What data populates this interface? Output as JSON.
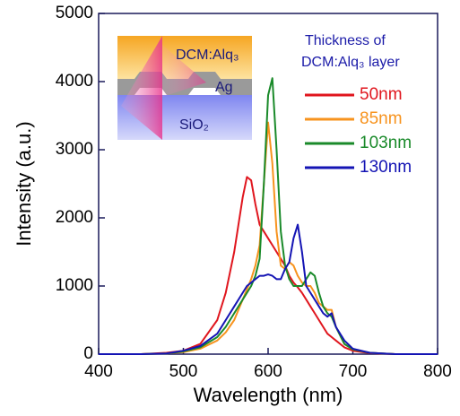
{
  "chart_data": {
    "type": "line",
    "x_label": "Wavelength (nm)",
    "y_label": "Intensity (a.u.)",
    "xlim": [
      400,
      800
    ],
    "xticks": [
      400,
      500,
      600,
      700,
      800
    ],
    "ylim": [
      0,
      5000
    ],
    "yticks": [
      0,
      1000,
      2000,
      3000,
      4000,
      5000
    ],
    "grid": false,
    "legend_position": "upper right",
    "legend_title": [
      "Thickness of",
      "DCM:Alq₃ layer"
    ],
    "inset_labels": [
      "DCM:Alq₃",
      "Ag",
      "SiO₂"
    ],
    "x": [
      400,
      450,
      480,
      500,
      520,
      540,
      550,
      560,
      570,
      575,
      580,
      585,
      590,
      595,
      600,
      605,
      610,
      615,
      620,
      625,
      630,
      635,
      640,
      645,
      650,
      655,
      660,
      665,
      670,
      675,
      680,
      690,
      700,
      720,
      750,
      800
    ],
    "series": [
      {
        "name": "50nm",
        "color": "#e0161e",
        "values": [
          0,
          0,
          20,
          50,
          150,
          500,
          900,
          1500,
          2300,
          2600,
          2550,
          2200,
          1900,
          1800,
          1700,
          1600,
          1500,
          1400,
          1300,
          1150,
          1050,
          980,
          900,
          800,
          700,
          600,
          500,
          400,
          300,
          250,
          200,
          100,
          50,
          15,
          0,
          0
        ]
      },
      {
        "name": "85nm",
        "color": "#f7931e",
        "values": [
          0,
          0,
          10,
          30,
          80,
          200,
          320,
          500,
          800,
          950,
          1100,
          1300,
          1600,
          2500,
          3400,
          2800,
          1800,
          1300,
          1250,
          1350,
          1300,
          1150,
          1050,
          1000,
          1000,
          900,
          750,
          700,
          650,
          650,
          400,
          150,
          70,
          20,
          0,
          0
        ]
      },
      {
        "name": "103nm",
        "color": "#1a8a2a",
        "values": [
          0,
          0,
          10,
          40,
          100,
          250,
          400,
          600,
          800,
          900,
          1000,
          1150,
          1400,
          2500,
          3800,
          4050,
          3000,
          1800,
          1300,
          1100,
          1000,
          1000,
          1000,
          1100,
          1200,
          1150,
          900,
          700,
          600,
          550,
          400,
          150,
          70,
          20,
          0,
          0
        ]
      },
      {
        "name": "130nm",
        "color": "#1414b4",
        "values": [
          0,
          0,
          10,
          50,
          120,
          300,
          500,
          700,
          900,
          1000,
          1050,
          1100,
          1150,
          1150,
          1170,
          1150,
          1100,
          1100,
          1250,
          1350,
          1700,
          1900,
          1500,
          1000,
          900,
          800,
          700,
          600,
          550,
          600,
          400,
          200,
          80,
          20,
          0,
          0
        ]
      }
    ]
  }
}
